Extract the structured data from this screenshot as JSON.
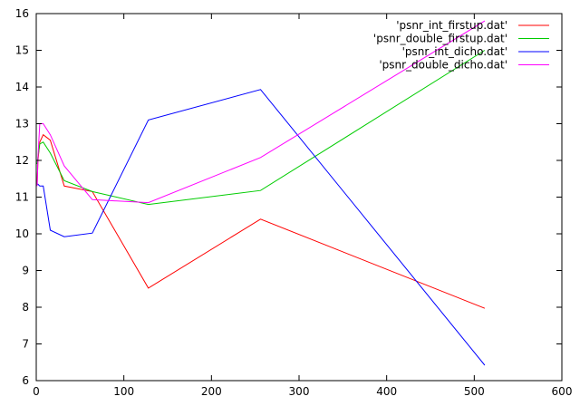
{
  "chart_data": {
    "type": "line",
    "title": "",
    "xlabel": "",
    "ylabel": "",
    "xlim": [
      0,
      600
    ],
    "ylim": [
      6,
      16
    ],
    "xticks": [
      0,
      100,
      200,
      300,
      400,
      500,
      600
    ],
    "yticks": [
      6,
      7,
      8,
      9,
      10,
      11,
      12,
      13,
      14,
      15,
      16
    ],
    "grid": false,
    "legend_position": "top-right",
    "series": [
      {
        "name": "'psnr_int_firstup.dat'",
        "color": "#ff0000",
        "x": [
          1,
          2,
          4,
          8,
          16,
          32,
          64,
          128,
          256,
          512
        ],
        "y": [
          11.35,
          12.0,
          12.5,
          12.7,
          12.55,
          11.3,
          11.15,
          8.52,
          10.4,
          7.97
        ]
      },
      {
        "name": "'psnr_double_firstup.dat'",
        "color": "#00cc00",
        "x": [
          1,
          2,
          4,
          8,
          16,
          32,
          64,
          128,
          256,
          512
        ],
        "y": [
          11.9,
          12.1,
          12.45,
          12.5,
          12.2,
          11.45,
          11.15,
          10.8,
          11.18,
          15.0
        ]
      },
      {
        "name": "'psnr_int_dicho.dat'",
        "color": "#0000ff",
        "x": [
          1,
          2,
          4,
          8,
          16,
          32,
          64,
          128,
          256,
          512
        ],
        "y": [
          11.35,
          11.35,
          11.3,
          11.3,
          10.1,
          9.92,
          10.02,
          13.1,
          13.93,
          6.42
        ]
      },
      {
        "name": "'psnr_double_dicho.dat'",
        "color": "#ff00ff",
        "x": [
          1,
          2,
          4,
          8,
          16,
          32,
          64,
          128,
          256,
          512
        ],
        "y": [
          11.3,
          12.1,
          13.0,
          13.0,
          12.7,
          11.85,
          10.93,
          10.85,
          12.08,
          15.8
        ]
      }
    ]
  }
}
